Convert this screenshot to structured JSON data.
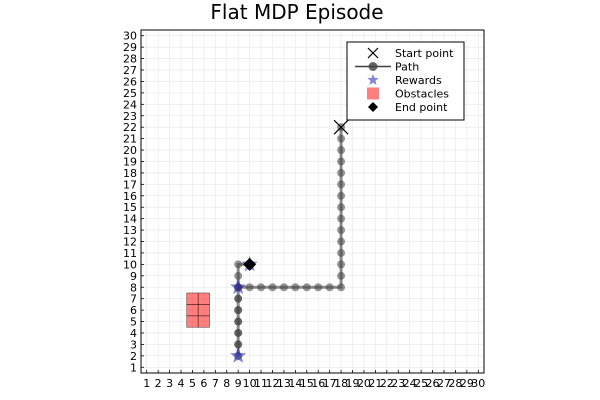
{
  "chart_data": {
    "type": "scatter",
    "title": "Flat MDP Episode",
    "xlabel": "",
    "ylabel": "",
    "xlim": [
      0.5,
      30.5
    ],
    "ylim": [
      0.5,
      30.5
    ],
    "grid": true,
    "legend_position": "top-right",
    "colors": {
      "path": "#404040",
      "rewards": "#2020b0",
      "obstacles": "#ff0000",
      "start": "#000000",
      "end": "#000000"
    },
    "x_ticks": [
      1,
      2,
      3,
      4,
      5,
      6,
      7,
      8,
      9,
      10,
      11,
      12,
      13,
      14,
      15,
      16,
      17,
      18,
      19,
      20,
      21,
      22,
      23,
      24,
      25,
      26,
      27,
      28,
      29,
      30
    ],
    "y_ticks": [
      1,
      2,
      3,
      4,
      5,
      6,
      7,
      8,
      9,
      10,
      11,
      12,
      13,
      14,
      15,
      16,
      17,
      18,
      19,
      20,
      21,
      22,
      23,
      24,
      25,
      26,
      27,
      28,
      29,
      30
    ],
    "legend": [
      {
        "key": "start",
        "label": "Start point"
      },
      {
        "key": "path",
        "label": "Path"
      },
      {
        "key": "rewards",
        "label": "Rewards"
      },
      {
        "key": "obstacles",
        "label": "Obstacles"
      },
      {
        "key": "end",
        "label": "End point"
      }
    ],
    "start_point": {
      "x": 18,
      "y": 22
    },
    "end_point": {
      "x": 10,
      "y": 10
    },
    "path": [
      {
        "x": 18,
        "y": 22
      },
      {
        "x": 18,
        "y": 21
      },
      {
        "x": 18,
        "y": 20
      },
      {
        "x": 18,
        "y": 19
      },
      {
        "x": 18,
        "y": 18
      },
      {
        "x": 18,
        "y": 17
      },
      {
        "x": 18,
        "y": 16
      },
      {
        "x": 18,
        "y": 15
      },
      {
        "x": 18,
        "y": 14
      },
      {
        "x": 18,
        "y": 13
      },
      {
        "x": 18,
        "y": 12
      },
      {
        "x": 18,
        "y": 11
      },
      {
        "x": 18,
        "y": 10
      },
      {
        "x": 18,
        "y": 9
      },
      {
        "x": 18,
        "y": 8
      },
      {
        "x": 17,
        "y": 8
      },
      {
        "x": 16,
        "y": 8
      },
      {
        "x": 15,
        "y": 8
      },
      {
        "x": 14,
        "y": 8
      },
      {
        "x": 13,
        "y": 8
      },
      {
        "x": 12,
        "y": 8
      },
      {
        "x": 11,
        "y": 8
      },
      {
        "x": 10,
        "y": 8
      },
      {
        "x": 9,
        "y": 8
      },
      {
        "x": 9,
        "y": 7
      },
      {
        "x": 9,
        "y": 6
      },
      {
        "x": 9,
        "y": 5
      },
      {
        "x": 9,
        "y": 4
      },
      {
        "x": 9,
        "y": 3
      },
      {
        "x": 9,
        "y": 2
      },
      {
        "x": 9,
        "y": 3
      },
      {
        "x": 9,
        "y": 4
      },
      {
        "x": 9,
        "y": 5
      },
      {
        "x": 9,
        "y": 6
      },
      {
        "x": 9,
        "y": 7
      },
      {
        "x": 9,
        "y": 8
      },
      {
        "x": 9,
        "y": 9
      },
      {
        "x": 9,
        "y": 10
      },
      {
        "x": 10,
        "y": 10
      }
    ],
    "rewards": [
      {
        "x": 9,
        "y": 2
      },
      {
        "x": 9,
        "y": 8
      },
      {
        "x": 10,
        "y": 10
      }
    ],
    "obstacles": [
      {
        "x": 5,
        "y": 5
      },
      {
        "x": 5,
        "y": 6
      },
      {
        "x": 5,
        "y": 7
      },
      {
        "x": 6,
        "y": 5
      },
      {
        "x": 6,
        "y": 6
      },
      {
        "x": 6,
        "y": 7
      }
    ]
  }
}
